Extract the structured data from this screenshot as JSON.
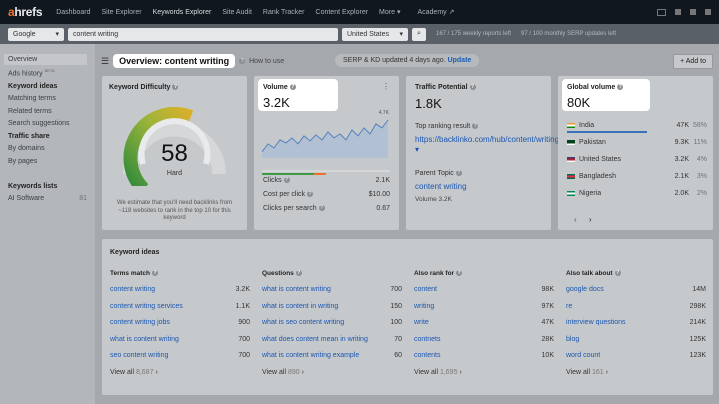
{
  "nav": {
    "logo_a": "a",
    "logo_rest": "hrefs",
    "links": [
      "Dashboard",
      "Site Explorer",
      "Keywords Explorer",
      "Site Audit",
      "Rank Tracker",
      "Content Explorer",
      "More ▾",
      "Academy ↗"
    ]
  },
  "search": {
    "engine": "Google",
    "keyword": "content writing",
    "country": "United States",
    "reports_quota": "167 / 175 weekly reports left",
    "serp_quota": "97 / 100 monthly SERP updates left"
  },
  "sidebar": {
    "overview": "Overview",
    "ads_history": "Ads history",
    "ads_beta": "BETA",
    "ki_head": "Keyword ideas",
    "ki_items": [
      "Matching terms",
      "Related terms",
      "Search suggestions"
    ],
    "ts_head": "Traffic share",
    "ts_items": [
      "By domains",
      "By pages"
    ],
    "kl_head": "Keywords lists",
    "kl_item": "AI Software",
    "kl_count": "81"
  },
  "header": {
    "title": "Overview: content writing",
    "howto": "How to use",
    "updated": "SERP & KD updated 4 days ago.",
    "update_link": "Update",
    "add_to": "+ Add to"
  },
  "kd": {
    "title": "Keyword Difficulty",
    "value": "58",
    "label": "Hard",
    "fraction": 0.58,
    "note": "We estimate that you'll need backlinks from ~118 websites to rank in the top 10 for this keyword"
  },
  "volume": {
    "title": "Volume",
    "value": "3.2K",
    "peak": "4.7K",
    "clicks_label": "Clicks",
    "clicks": "2.1K",
    "cpc_label": "Cost per click",
    "cpc": "$10.00",
    "cps_label": "Clicks per search",
    "cps": "0.67"
  },
  "traffic": {
    "title": "Traffic Potential",
    "value": "1.8K",
    "trp_label": "Top ranking result",
    "trp_url": "https://backlinko.com/hub/content/writing ▾",
    "parent_label": "Parent Topic",
    "parent": "content writing",
    "parent_vol": "Volume 3.2K"
  },
  "global": {
    "title": "Global volume",
    "value": "80K",
    "countries": [
      {
        "name": "India",
        "vol": "47K",
        "pct": "58%",
        "colors": [
          "#f29933",
          "#ffffff",
          "#138808"
        ]
      },
      {
        "name": "Pakistan",
        "vol": "9.3K",
        "pct": "11%",
        "colors": [
          "#01411c",
          "#01411c",
          "#ffffff"
        ]
      },
      {
        "name": "United States",
        "vol": "3.2K",
        "pct": "4%",
        "colors": [
          "#3c3b6e",
          "#b22234",
          "#ffffff"
        ]
      },
      {
        "name": "Bangladesh",
        "vol": "2.1K",
        "pct": "3%",
        "colors": [
          "#006a4e",
          "#f42a41",
          "#006a4e"
        ]
      },
      {
        "name": "Nigeria",
        "vol": "2.0K",
        "pct": "2%",
        "colors": [
          "#008751",
          "#ffffff",
          "#008751"
        ]
      }
    ]
  },
  "ideas": {
    "title": "Keyword ideas",
    "cols": [
      {
        "head": "Terms match",
        "rows": [
          [
            "content writing",
            "3.2K"
          ],
          [
            "content writing services",
            "1.1K"
          ],
          [
            "content writing jobs",
            "900"
          ],
          [
            "what is content writing",
            "700"
          ],
          [
            "seo content writing",
            "700"
          ]
        ],
        "view": "View all",
        "count": "8,687"
      },
      {
        "head": "Questions",
        "rows": [
          [
            "what is content writing",
            "700"
          ],
          [
            "what is content in writing",
            "150"
          ],
          [
            "what is seo content writing",
            "100"
          ],
          [
            "what does content mean in writing",
            "70"
          ],
          [
            "what is content writing example",
            "60"
          ]
        ],
        "view": "View all",
        "count": "890"
      },
      {
        "head": "Also rank for",
        "rows": [
          [
            "content",
            "98K"
          ],
          [
            "writing",
            "97K"
          ],
          [
            "write",
            "47K"
          ],
          [
            "contnets",
            "28K"
          ],
          [
            "contents",
            "10K"
          ]
        ],
        "view": "View all",
        "count": "1,695"
      },
      {
        "head": "Also talk about",
        "rows": [
          [
            "google docs",
            "14M"
          ],
          [
            "re",
            "298K"
          ],
          [
            "interview questions",
            "214K"
          ],
          [
            "blog",
            "125K"
          ],
          [
            "word count",
            "123K"
          ]
        ],
        "view": "View all",
        "count": "161"
      }
    ]
  }
}
